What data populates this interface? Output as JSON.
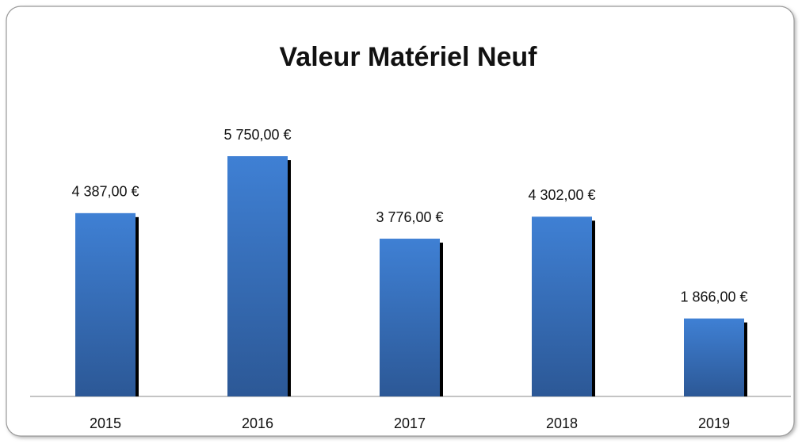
{
  "chart_data": {
    "type": "bar",
    "title": "Valeur Matériel Neuf",
    "categories": [
      "2015",
      "2016",
      "2017",
      "2018",
      "2019"
    ],
    "values": [
      4387,
      5750,
      3776,
      4302,
      1866
    ],
    "value_labels": [
      "4 387,00 €",
      "5 750,00 €",
      "3 776,00 €",
      "4 302,00 €",
      "1 866,00 €"
    ],
    "color": "#3a74c4"
  }
}
